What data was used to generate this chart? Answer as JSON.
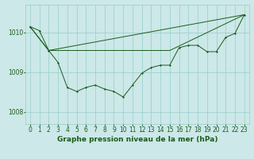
{
  "xlabel": "Graphe pression niveau de la mer (hPa)",
  "background_color": "#cce8e8",
  "grid_color": "#99cccc",
  "line_color": "#1a5c1a",
  "xlim": [
    -0.5,
    23.5
  ],
  "ylim": [
    1007.7,
    1010.7
  ],
  "yticks": [
    1008,
    1009,
    1010
  ],
  "xticks": [
    0,
    1,
    2,
    3,
    4,
    5,
    6,
    7,
    8,
    9,
    10,
    11,
    12,
    13,
    14,
    15,
    16,
    17,
    18,
    19,
    20,
    21,
    22,
    23
  ],
  "line1_x": [
    0,
    1,
    2,
    3,
    4,
    5,
    6,
    7,
    8,
    9,
    10,
    11,
    12,
    13,
    14,
    15,
    16,
    17,
    18,
    19,
    20,
    21,
    22,
    23
  ],
  "line1_y": [
    1010.15,
    1010.05,
    1009.55,
    1009.25,
    1008.62,
    1008.52,
    1008.62,
    1008.68,
    1008.58,
    1008.52,
    1008.38,
    1008.68,
    1008.98,
    1009.12,
    1009.18,
    1009.18,
    1009.62,
    1009.68,
    1009.68,
    1009.52,
    1009.52,
    1009.88,
    1009.98,
    1010.45
  ],
  "line2_x": [
    0,
    2,
    23
  ],
  "line2_y": [
    1010.15,
    1009.55,
    1010.45
  ],
  "line3_x": [
    0,
    2,
    15,
    23
  ],
  "line3_y": [
    1010.15,
    1009.55,
    1009.55,
    1010.45
  ],
  "xlabel_fontsize": 6.5,
  "tick_fontsize": 5.5
}
